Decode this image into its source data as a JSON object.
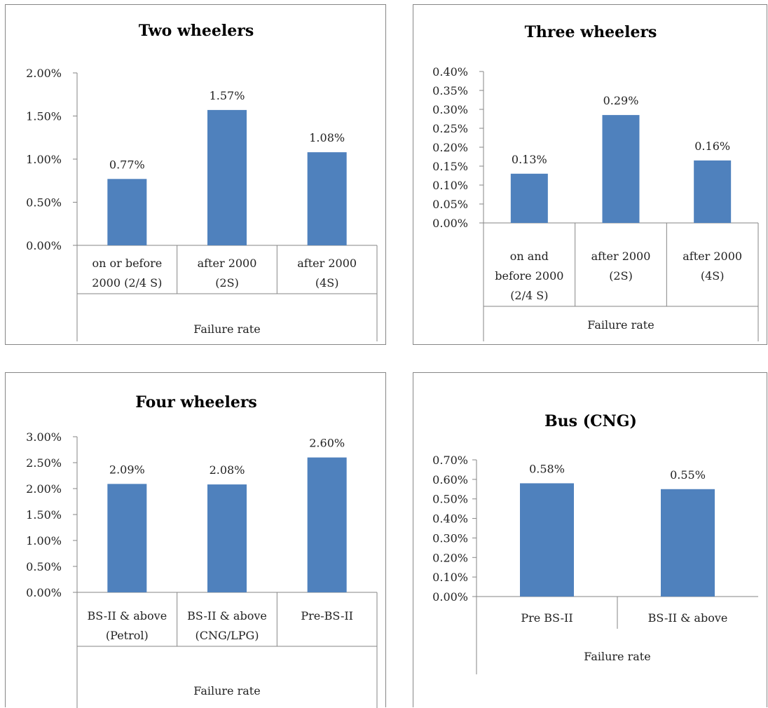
{
  "colors": {
    "bar": "#4F81BD",
    "axis": "#868686",
    "text": "#222222"
  },
  "chart_data": [
    {
      "type": "bar",
      "title": "Two wheelers",
      "categories": [
        [
          "on or before",
          "2000 (2/4 S)"
        ],
        [
          "after 2000",
          "(2S)"
        ],
        [
          "after 2000",
          "(4S)"
        ]
      ],
      "group_label": "Failure rate",
      "values": [
        0.0077,
        0.0157,
        0.0108
      ],
      "data_labels": [
        "0.77%",
        "1.57%",
        "1.08%"
      ],
      "yticks": [
        "0.00%",
        "0.50%",
        "1.00%",
        "1.50%",
        "2.00%"
      ],
      "ylim": [
        0,
        0.02
      ],
      "grid": false,
      "legend": "none"
    },
    {
      "type": "bar",
      "title": "Three wheelers",
      "categories": [
        [
          "on and",
          "before 2000",
          "(2/4 S)"
        ],
        [
          "after 2000",
          "(2S)"
        ],
        [
          "after 2000",
          "(4S)"
        ]
      ],
      "group_label": "Failure rate",
      "values": [
        0.0013,
        0.00285,
        0.00165
      ],
      "data_labels": [
        "0.13%",
        "0.29%",
        "0.16%"
      ],
      "yticks": [
        "0.00%",
        "0.05%",
        "0.10%",
        "0.15%",
        "0.20%",
        "0.25%",
        "0.30%",
        "0.35%",
        "0.40%"
      ],
      "ylim": [
        0,
        0.004
      ],
      "grid": false,
      "legend": "none"
    },
    {
      "type": "bar",
      "title": "Four wheelers",
      "categories": [
        [
          "BS-II & above",
          "(Petrol)"
        ],
        [
          "BS-II & above",
          "(CNG/LPG)"
        ],
        [
          "Pre-BS-II"
        ]
      ],
      "group_label": "Failure rate",
      "values": [
        0.0209,
        0.0208,
        0.026
      ],
      "data_labels": [
        "2.09%",
        "2.08%",
        "2.60%"
      ],
      "yticks": [
        "0.00%",
        "0.50%",
        "1.00%",
        "1.50%",
        "2.00%",
        "2.50%",
        "3.00%"
      ],
      "ylim": [
        0,
        0.03
      ],
      "grid": false,
      "legend": "none"
    },
    {
      "type": "bar",
      "title": "Bus (CNG)",
      "categories": [
        [
          "Pre BS-II"
        ],
        [
          "BS-II & above"
        ]
      ],
      "group_label": "Failure rate",
      "values": [
        0.0058,
        0.0055
      ],
      "data_labels": [
        "0.58%",
        "0.55%"
      ],
      "yticks": [
        "0.00%",
        "0.10%",
        "0.20%",
        "0.30%",
        "0.40%",
        "0.50%",
        "0.60%",
        "0.70%"
      ],
      "ylim": [
        0,
        0.007
      ],
      "grid": false,
      "legend": "none"
    }
  ]
}
